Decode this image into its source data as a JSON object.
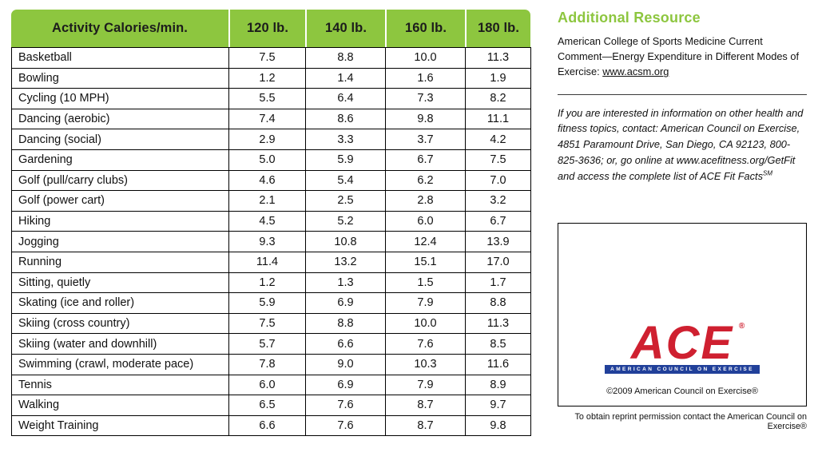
{
  "table": {
    "headers": [
      "Activity Calories/min.",
      "120 lb.",
      "140 lb.",
      "160 lb.",
      "180 lb."
    ],
    "rows": [
      {
        "activity": "Basketball",
        "values": [
          "7.5",
          "8.8",
          "10.0",
          "11.3"
        ]
      },
      {
        "activity": "Bowling",
        "values": [
          "1.2",
          "1.4",
          "1.6",
          "1.9"
        ]
      },
      {
        "activity": "Cycling (10 MPH)",
        "values": [
          "5.5",
          "6.4",
          "7.3",
          "8.2"
        ]
      },
      {
        "activity": "Dancing (aerobic)",
        "values": [
          "7.4",
          "8.6",
          "9.8",
          "11.1"
        ]
      },
      {
        "activity": "Dancing (social)",
        "values": [
          "2.9",
          "3.3",
          "3.7",
          "4.2"
        ]
      },
      {
        "activity": "Gardening",
        "values": [
          "5.0",
          "5.9",
          "6.7",
          "7.5"
        ]
      },
      {
        "activity": "Golf (pull/carry clubs)",
        "values": [
          "4.6",
          "5.4",
          "6.2",
          "7.0"
        ]
      },
      {
        "activity": "Golf (power cart)",
        "values": [
          "2.1",
          "2.5",
          "2.8",
          "3.2"
        ]
      },
      {
        "activity": "Hiking",
        "values": [
          "4.5",
          "5.2",
          "6.0",
          "6.7"
        ]
      },
      {
        "activity": "Jogging",
        "values": [
          "9.3",
          "10.8",
          "12.4",
          "13.9"
        ]
      },
      {
        "activity": "Running",
        "values": [
          "11.4",
          "13.2",
          "15.1",
          "17.0"
        ]
      },
      {
        "activity": "Sitting, quietly",
        "values": [
          "1.2",
          "1.3",
          "1.5",
          "1.7"
        ]
      },
      {
        "activity": "Skating (ice and roller)",
        "values": [
          "5.9",
          "6.9",
          "7.9",
          "8.8"
        ]
      },
      {
        "activity": "Skiing (cross country)",
        "values": [
          "7.5",
          "8.8",
          "10.0",
          "11.3"
        ]
      },
      {
        "activity": "Skiing (water and downhill)",
        "values": [
          "5.7",
          "6.6",
          "7.6",
          "8.5"
        ]
      },
      {
        "activity": "Swimming (crawl, moderate pace)",
        "values": [
          "7.8",
          "9.0",
          "10.3",
          "11.6"
        ]
      },
      {
        "activity": "Tennis",
        "values": [
          "6.0",
          "6.9",
          "7.9",
          "8.9"
        ]
      },
      {
        "activity": "Walking",
        "values": [
          "6.5",
          "7.6",
          "8.7",
          "9.7"
        ]
      },
      {
        "activity": "Weight Training",
        "values": [
          "6.6",
          "7.6",
          "8.7",
          "9.8"
        ]
      }
    ]
  },
  "resource": {
    "heading": "Additional Resource",
    "text_before_link": "American College of Sports Medicine Current Comment—Energy Expenditure in Different Modes of Exercise: ",
    "link": "www.acsm.org",
    "contact_text": "If you are interested in information on other health and fitness topics, contact: American Council on Exercise, 4851 Paramount Drive, San Diego, CA 92123, 800-825-3636; or, go online at www.acefitness.org/GetFit and access the complete list of ACE Fit Facts",
    "contact_mark": "SM"
  },
  "logo": {
    "letters": "ACE",
    "registered": "®",
    "subtext": "AMERICAN COUNCIL ON EXERCISE",
    "copyright": "©2009 American Council on Exercise®"
  },
  "footer": {
    "reprint": "To obtain reprint permission contact the American Council on Exercise®"
  },
  "colors": {
    "header_green": "#8dc63f",
    "ace_red": "#cf2030",
    "ace_blue": "#21409a"
  }
}
